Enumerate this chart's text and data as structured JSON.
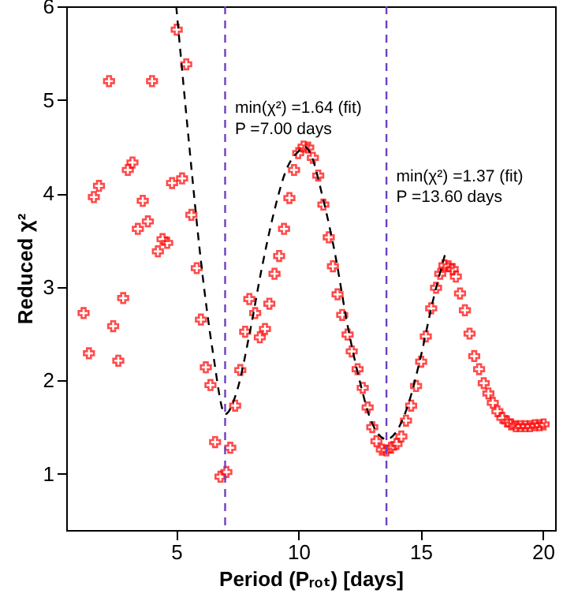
{
  "chart_data": {
    "type": "scatter",
    "xlabel": "Period (Pᵣₒₜ) [days]",
    "ylabel": "Reduced χ²",
    "xlim": [
      0.5,
      20.5
    ],
    "ylim": [
      0.4,
      6
    ],
    "xticks": [
      5,
      10,
      15,
      20
    ],
    "yticks": [
      1,
      2,
      3,
      4,
      5,
      6
    ],
    "grid": false,
    "series": [
      {
        "color": "#ff0000",
        "marker": "cross",
        "x": [
          1.21,
          1.43,
          1.63,
          1.84,
          2.25,
          2.42,
          2.63,
          2.83,
          3.02,
          3.21,
          3.43,
          3.63,
          3.84,
          4.01,
          4.25,
          4.44,
          4.63,
          4.83,
          5.02,
          5.24,
          5.41,
          5.62,
          5.84,
          6.01,
          6.21,
          6.4,
          6.59,
          6.81,
          7.05,
          7.21,
          7.41,
          7.62,
          7.82,
          7.99,
          8.23,
          8.42,
          8.63,
          8.81,
          9.02,
          9.21,
          9.41,
          9.63,
          9.82,
          9.99,
          10.21,
          10.4,
          10.59,
          10.81,
          11.02,
          11.24,
          11.41,
          11.6,
          11.79,
          12.01,
          12.18,
          12.42,
          12.63,
          12.83,
          13.02,
          13.19,
          13.41,
          13.6,
          13.79,
          14.01,
          14.21,
          14.4,
          14.61,
          14.81,
          15.02,
          15.21,
          15.43,
          15.63,
          15.8,
          15.97,
          16.14,
          16.31,
          16.44,
          16.61,
          16.81,
          17.0,
          17.19,
          17.39,
          17.58,
          17.77,
          17.95,
          18.14,
          18.34,
          18.53,
          18.7,
          18.89,
          19.08,
          19.28,
          19.47,
          19.67,
          19.86,
          20.03
        ],
        "values": [
          2.72,
          2.29,
          3.96,
          4.08,
          5.2,
          2.58,
          2.21,
          2.88,
          4.25,
          4.33,
          3.62,
          3.92,
          3.7,
          5.2,
          3.38,
          3.51,
          3.47,
          4.11,
          5.75,
          4.16,
          5.38,
          3.77,
          3.2,
          2.65,
          2.14,
          1.95,
          1.34,
          0.97,
          1.02,
          1.28,
          1.73,
          2.11,
          2.52,
          2.87,
          2.72,
          2.46,
          2.55,
          2.82,
          3.14,
          3.33,
          3.62,
          3.95,
          4.25,
          4.43,
          4.5,
          4.49,
          4.38,
          4.19,
          3.88,
          3.53,
          3.22,
          2.92,
          2.7,
          2.49,
          2.31,
          2.12,
          1.92,
          1.71,
          1.5,
          1.35,
          1.26,
          1.25,
          1.28,
          1.32,
          1.4,
          1.57,
          1.73,
          1.94,
          2.2,
          2.47,
          2.77,
          2.99,
          3.14,
          3.23,
          3.22,
          3.19,
          3.11,
          2.93,
          2.75,
          2.5,
          2.26,
          2.12,
          1.97,
          1.86,
          1.76,
          1.67,
          1.6,
          1.56,
          1.53,
          1.51,
          1.51,
          1.51,
          1.51,
          1.52,
          1.52,
          1.53
        ]
      },
      {
        "type": "line",
        "color": "#000000",
        "line_style": "dashed",
        "x": [
          5.0,
          5.5,
          6.0,
          6.5,
          7.0,
          7.5,
          8.0,
          8.5,
          9.0,
          9.5,
          10.0,
          10.25,
          10.5,
          11.0,
          11.5,
          12.0,
          12.5,
          13.0,
          13.6,
          14.0,
          14.5,
          15.0,
          15.5,
          16.0
        ],
        "values": [
          6.0,
          4.6,
          3.3,
          2.3,
          1.64,
          1.9,
          2.5,
          3.2,
          3.8,
          4.25,
          4.45,
          4.5,
          4.42,
          3.95,
          3.35,
          2.6,
          2.0,
          1.55,
          1.37,
          1.45,
          1.75,
          2.25,
          2.85,
          3.35
        ]
      }
    ],
    "ref_lines": [
      {
        "axis": "x",
        "value": 7.0,
        "color": "#7040c0",
        "line_style": "dashed"
      },
      {
        "axis": "x",
        "value": 13.6,
        "color": "#7040c0",
        "line_style": "dashed"
      }
    ],
    "annotations": [
      "min(χ²) =1.64 (fit)",
      "P =7.00 days",
      "min(χ²) =1.37 (fit)",
      "P =13.60 days"
    ]
  }
}
